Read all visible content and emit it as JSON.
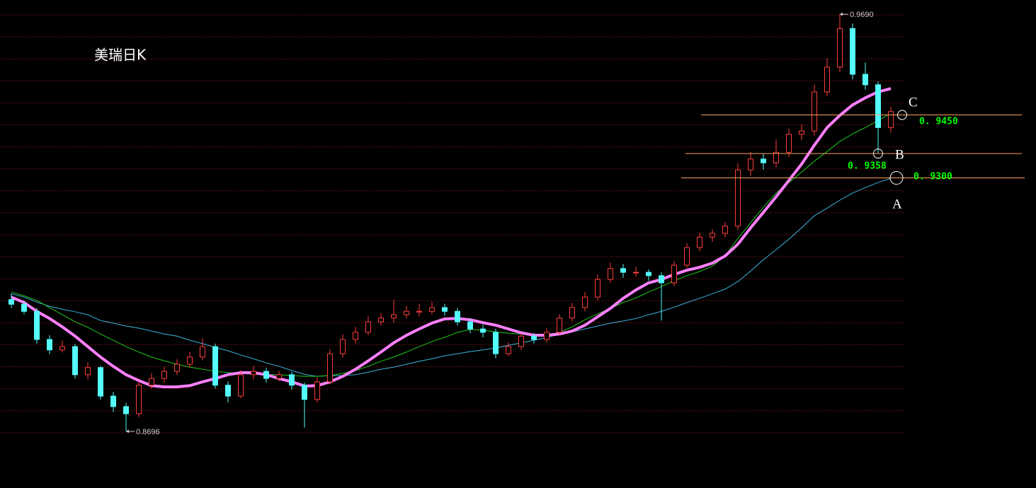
{
  "chart_data": {
    "type": "candlestick",
    "title": "美瑞日K",
    "up_color": "#ff3c3c",
    "down_color": "#54fcfc",
    "ylim": [
      0.8561,
      0.9724
    ],
    "grid": true,
    "grid_color": "#a01818",
    "level_color": "#ff9e5a",
    "ohlc": [
      [
        0.901,
        0.9024,
        0.899,
        0.8999
      ],
      [
        0.8999,
        0.9008,
        0.8975,
        0.8982
      ],
      [
        0.8982,
        0.899,
        0.8905,
        0.8915
      ],
      [
        0.8915,
        0.8925,
        0.888,
        0.889
      ],
      [
        0.889,
        0.8912,
        0.8884,
        0.8898
      ],
      [
        0.8898,
        0.8904,
        0.8822,
        0.8831
      ],
      [
        0.8831,
        0.886,
        0.882,
        0.8848
      ],
      [
        0.8848,
        0.8852,
        0.8772,
        0.878
      ],
      [
        0.878,
        0.879,
        0.8742,
        0.8755
      ],
      [
        0.8755,
        0.8764,
        0.8696,
        0.8738
      ],
      [
        0.8738,
        0.8815,
        0.873,
        0.8806
      ],
      [
        0.8806,
        0.8835,
        0.8798,
        0.8822
      ],
      [
        0.8822,
        0.885,
        0.8812,
        0.8839
      ],
      [
        0.8839,
        0.8868,
        0.883,
        0.8856
      ],
      [
        0.8856,
        0.8885,
        0.8848,
        0.8873
      ],
      [
        0.8873,
        0.8918,
        0.8865,
        0.8898
      ],
      [
        0.8898,
        0.8905,
        0.8798,
        0.8806
      ],
      [
        0.8806,
        0.8815,
        0.8765,
        0.878
      ],
      [
        0.878,
        0.8842,
        0.8775,
        0.8831
      ],
      [
        0.8831,
        0.8852,
        0.882,
        0.8839
      ],
      [
        0.8839,
        0.8848,
        0.8812,
        0.8822
      ],
      [
        0.8822,
        0.884,
        0.8815,
        0.8831
      ],
      [
        0.8831,
        0.8838,
        0.8795,
        0.8806
      ],
      [
        0.8806,
        0.8812,
        0.8705,
        0.8772
      ],
      [
        0.8772,
        0.8825,
        0.8765,
        0.8814
      ],
      [
        0.8814,
        0.8892,
        0.8808,
        0.8881
      ],
      [
        0.8881,
        0.8928,
        0.8872,
        0.8915
      ],
      [
        0.8915,
        0.8945,
        0.8905,
        0.8932
      ],
      [
        0.8932,
        0.897,
        0.8925,
        0.8957
      ],
      [
        0.8957,
        0.8978,
        0.8948,
        0.8966
      ],
      [
        0.8966,
        0.901,
        0.8955,
        0.8974
      ],
      [
        0.8974,
        0.8995,
        0.8965,
        0.8982
      ],
      [
        0.8982,
        0.9,
        0.897,
        0.8982
      ],
      [
        0.8982,
        0.9004,
        0.8975,
        0.8991
      ],
      [
        0.8991,
        0.9,
        0.8972,
        0.8982
      ],
      [
        0.8982,
        0.899,
        0.8948,
        0.8957
      ],
      [
        0.8957,
        0.8965,
        0.893,
        0.894
      ],
      [
        0.894,
        0.895,
        0.892,
        0.8932
      ],
      [
        0.8932,
        0.894,
        0.887,
        0.8881
      ],
      [
        0.8881,
        0.8908,
        0.8875,
        0.8898
      ],
      [
        0.8898,
        0.893,
        0.889,
        0.8923
      ],
      [
        0.8923,
        0.893,
        0.8905,
        0.8915
      ],
      [
        0.8915,
        0.8942,
        0.8908,
        0.8932
      ],
      [
        0.8932,
        0.8975,
        0.8925,
        0.8966
      ],
      [
        0.8966,
        0.9002,
        0.8958,
        0.8991
      ],
      [
        0.8991,
        0.9028,
        0.8982,
        0.9016
      ],
      [
        0.9016,
        0.907,
        0.9008,
        0.9058
      ],
      [
        0.9058,
        0.9098,
        0.905,
        0.9084
      ],
      [
        0.9084,
        0.9095,
        0.9062,
        0.9075
      ],
      [
        0.9075,
        0.9088,
        0.9065,
        0.9075
      ],
      [
        0.9075,
        0.9082,
        0.9055,
        0.9067
      ],
      [
        0.9067,
        0.9075,
        0.896,
        0.905
      ],
      [
        0.905,
        0.9102,
        0.9042,
        0.9092
      ],
      [
        0.9092,
        0.9145,
        0.9085,
        0.9134
      ],
      [
        0.9134,
        0.917,
        0.9125,
        0.9159
      ],
      [
        0.9159,
        0.9178,
        0.9148,
        0.9168
      ],
      [
        0.9168,
        0.9195,
        0.9158,
        0.9185
      ],
      [
        0.9185,
        0.9335,
        0.9175,
        0.9319
      ],
      [
        0.9319,
        0.9362,
        0.9305,
        0.9345
      ],
      [
        0.9345,
        0.9358,
        0.932,
        0.9336
      ],
      [
        0.9336,
        0.9392,
        0.9325,
        0.9361
      ],
      [
        0.9361,
        0.9418,
        0.935,
        0.9404
      ],
      [
        0.9404,
        0.9428,
        0.939,
        0.9412
      ],
      [
        0.9412,
        0.9522,
        0.94,
        0.9505
      ],
      [
        0.9505,
        0.9585,
        0.9495,
        0.9564
      ],
      [
        0.9564,
        0.969,
        0.9552,
        0.9656
      ],
      [
        0.9656,
        0.9668,
        0.9535,
        0.9547
      ],
      [
        0.9547,
        0.9575,
        0.951,
        0.9522
      ],
      [
        0.9522,
        0.953,
        0.9358,
        0.942
      ],
      [
        0.942,
        0.947,
        0.9408,
        0.9458
      ]
    ],
    "series": [
      {
        "color": "#3cb4dc",
        "width": 1,
        "values": [
          0.9024,
          0.9016,
          0.9004,
          0.8994,
          0.8987,
          0.8981,
          0.8974,
          0.896,
          0.8954,
          0.8947,
          0.8942,
          0.8935,
          0.8928,
          0.8923,
          0.8913,
          0.8905,
          0.8896,
          0.8888,
          0.8878,
          0.8869,
          0.8859,
          0.8851,
          0.8841,
          0.8832,
          0.8827,
          0.8829,
          0.8829,
          0.8831,
          0.8837,
          0.8844,
          0.8849,
          0.8856,
          0.8863,
          0.8869,
          0.8876,
          0.8881,
          0.8886,
          0.889,
          0.8895,
          0.8901,
          0.8907,
          0.8913,
          0.892,
          0.8927,
          0.8933,
          0.894,
          0.8947,
          0.8954,
          0.8959,
          0.8965,
          0.8974,
          0.8982,
          0.8992,
          0.9003,
          0.9013,
          0.9024,
          0.9035,
          0.9053,
          0.9078,
          0.9105,
          0.9129,
          0.9154,
          0.9181,
          0.921,
          0.9228,
          0.9247,
          0.9264,
          0.9277,
          0.9289,
          0.9299
        ]
      },
      {
        "color": "#1ec81e",
        "width": 1,
        "values": [
          0.9028,
          0.9019,
          0.9008,
          0.8991,
          0.8974,
          0.8957,
          0.8944,
          0.8928,
          0.8913,
          0.8898,
          0.8885,
          0.8873,
          0.8864,
          0.8856,
          0.8849,
          0.8844,
          0.8839,
          0.8836,
          0.8834,
          0.8832,
          0.8831,
          0.8831,
          0.8829,
          0.8827,
          0.8827,
          0.8829,
          0.8834,
          0.8841,
          0.8851,
          0.8863,
          0.8873,
          0.8885,
          0.8898,
          0.891,
          0.892,
          0.8932,
          0.8939,
          0.8937,
          0.8933,
          0.893,
          0.8928,
          0.8925,
          0.8925,
          0.8932,
          0.8945,
          0.8962,
          0.8976,
          0.8989,
          0.9003,
          0.9014,
          0.9028,
          0.9041,
          0.9055,
          0.9067,
          0.9077,
          0.909,
          0.9114,
          0.9156,
          0.9193,
          0.923,
          0.9264,
          0.9289,
          0.9314,
          0.934,
          0.9363,
          0.9387,
          0.9405,
          0.942,
          0.9437,
          0.9454
        ]
      },
      {
        "color": "#ff80ff",
        "width": 4,
        "values": [
          0.9016,
          0.9003,
          0.8982,
          0.8965,
          0.8945,
          0.8923,
          0.8898,
          0.8873,
          0.8851,
          0.8831,
          0.8817,
          0.8805,
          0.8802,
          0.8802,
          0.8805,
          0.8814,
          0.8822,
          0.8831,
          0.8836,
          0.8836,
          0.8831,
          0.8822,
          0.8814,
          0.8804,
          0.8805,
          0.8814,
          0.8827,
          0.8844,
          0.8864,
          0.8885,
          0.8907,
          0.8925,
          0.894,
          0.8954,
          0.8964,
          0.8965,
          0.8962,
          0.8955,
          0.8949,
          0.894,
          0.8931,
          0.8925,
          0.8925,
          0.8928,
          0.8935,
          0.8949,
          0.8969,
          0.8989,
          0.9013,
          0.9033,
          0.905,
          0.9058,
          0.907,
          0.908,
          0.9087,
          0.9097,
          0.9114,
          0.9142,
          0.9181,
          0.9218,
          0.9255,
          0.9294,
          0.9333,
          0.9378,
          0.942,
          0.9449,
          0.9474,
          0.9491,
          0.9505,
          0.9513
        ]
      }
    ],
    "extremes": [
      {
        "value": 0.969,
        "label": "0.9690"
      },
      {
        "value": 0.8696,
        "label": "0.8696"
      }
    ],
    "levels": [
      {
        "name": "C",
        "value": 0.945,
        "label": "0. 9450"
      },
      {
        "name": "B",
        "value": 0.9358,
        "label": "0. 9358"
      },
      {
        "name": "A",
        "value": 0.93,
        "label": "0. 9300"
      }
    ]
  }
}
